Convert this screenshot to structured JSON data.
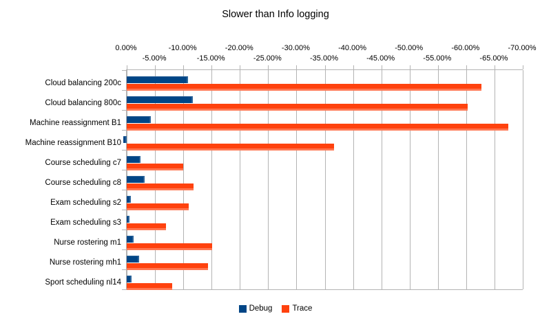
{
  "title": "Slower than Info logging",
  "colors": {
    "debug": "#004586",
    "trace": "#FF420E",
    "grid": "#b3b3b3",
    "text": "#000000",
    "background": "#ffffff"
  },
  "legend": {
    "entries": [
      {
        "label": "Debug",
        "color": "#004586"
      },
      {
        "label": "Trace",
        "color": "#FF420E"
      }
    ],
    "position": "bottom"
  },
  "chart_data": {
    "type": "bar",
    "orientation": "horizontal",
    "title": "Slower than Info logging",
    "categories": [
      "Cloud balancing 200c",
      "Cloud balancing 800c",
      "Machine reassignment B1",
      "Machine reassignment B10",
      "Course scheduling c7",
      "Course scheduling c8",
      "Exam scheduling s2",
      "Exam scheduling s3",
      "Nurse rostering m1",
      "Nurse rostering mh1",
      "Sport scheduling nl14"
    ],
    "series": [
      {
        "name": "Debug",
        "color": "#004586",
        "values": [
          -10.8,
          -11.7,
          -4.3,
          0.6,
          -2.4,
          -3.2,
          -0.7,
          -0.5,
          -1.2,
          -2.2,
          -0.9
        ]
      },
      {
        "name": "Trace",
        "color": "#FF420E",
        "values": [
          -62.7,
          -60.2,
          -67.4,
          -36.6,
          -10.0,
          -11.8,
          -11.0,
          -6.9,
          -15.1,
          -14.4,
          -8.0
        ]
      }
    ],
    "value_axis": {
      "unit": "%",
      "range": [
        0,
        -70
      ],
      "tick_step": -5,
      "tick_labels": [
        "0.00%",
        "-5.00%",
        "-10.00%",
        "-15.00%",
        "-20.00%",
        "-25.00%",
        "-30.00%",
        "-35.00%",
        "-40.00%",
        "-45.00%",
        "-50.00%",
        "-55.00%",
        "-60.00%",
        "-65.00%",
        "-70.00%"
      ],
      "labels_position": "top",
      "labels_staggered": true
    },
    "grid": true,
    "legend_position": "bottom"
  }
}
